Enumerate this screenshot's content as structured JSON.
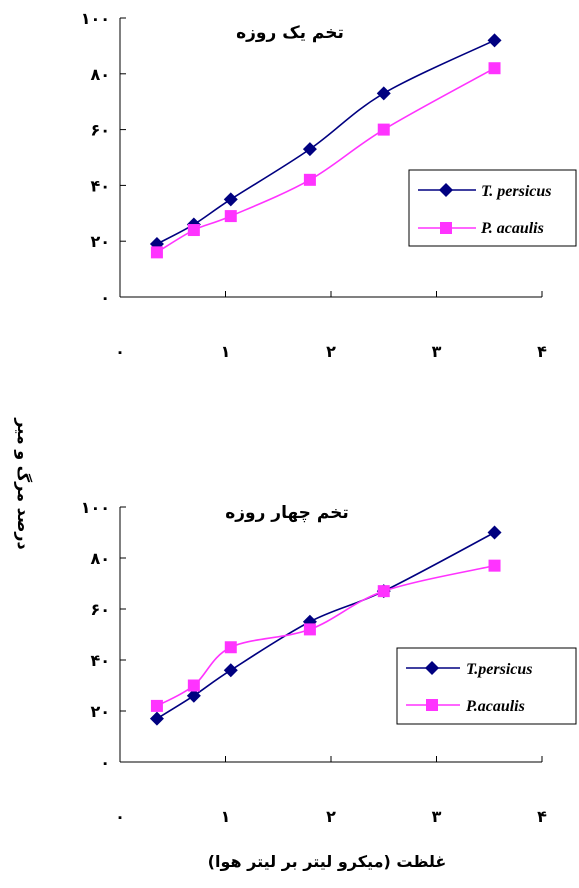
{
  "shared": {
    "y_axis_label": "درصد مرگ و میر",
    "x_axis_label": "غلظت (میکرو لیتر بر لیتر هوا)"
  },
  "chart_data": [
    {
      "type": "line",
      "title": "تخم یک روزه",
      "xlim": [
        0,
        4
      ],
      "ylim": [
        0,
        100
      ],
      "x_ticks": [
        0,
        1,
        2,
        3,
        4
      ],
      "x_tick_labels": [
        "۰",
        "۱",
        "۲",
        "۳",
        "۴"
      ],
      "y_ticks": [
        0,
        20,
        40,
        60,
        80,
        100
      ],
      "y_tick_labels": [
        "۰",
        "۲۰",
        "۴۰",
        "۶۰",
        "۸۰",
        "۱۰۰"
      ],
      "legend_position": "right",
      "series": [
        {
          "name": "T. persicus",
          "color": "#000080",
          "marker": "diamond",
          "points": [
            [
              0.35,
              19
            ],
            [
              0.7,
              26
            ],
            [
              1.05,
              35
            ],
            [
              1.8,
              53
            ],
            [
              2.5,
              73
            ],
            [
              3.55,
              92
            ]
          ]
        },
        {
          "name": "P. acaulis",
          "color": "#ff33ff",
          "marker": "square",
          "points": [
            [
              0.35,
              16
            ],
            [
              0.7,
              24
            ],
            [
              1.05,
              29
            ],
            [
              1.8,
              42
            ],
            [
              2.5,
              60
            ],
            [
              3.55,
              82
            ]
          ]
        }
      ]
    },
    {
      "type": "line",
      "title": "تخم چهار روزه",
      "xlim": [
        0,
        4
      ],
      "ylim": [
        0,
        100
      ],
      "x_ticks": [
        0,
        1,
        2,
        3,
        4
      ],
      "x_tick_labels": [
        "۰",
        "۱",
        "۲",
        "۳",
        "۴"
      ],
      "y_ticks": [
        0,
        20,
        40,
        60,
        80,
        100
      ],
      "y_tick_labels": [
        "۰",
        "۲۰",
        "۴۰",
        "۶۰",
        "۸۰",
        "۱۰۰"
      ],
      "legend_position": "right",
      "series": [
        {
          "name": "T.persicus",
          "color": "#000080",
          "marker": "diamond",
          "points": [
            [
              0.35,
              17
            ],
            [
              0.7,
              26
            ],
            [
              1.05,
              36
            ],
            [
              1.8,
              55
            ],
            [
              2.5,
              67
            ],
            [
              3.55,
              90
            ]
          ]
        },
        {
          "name": "P.acaulis",
          "color": "#ff33ff",
          "marker": "square",
          "points": [
            [
              0.35,
              22
            ],
            [
              0.7,
              30
            ],
            [
              1.05,
              45
            ],
            [
              1.8,
              52
            ],
            [
              2.5,
              67
            ],
            [
              3.55,
              77
            ]
          ]
        }
      ]
    }
  ]
}
